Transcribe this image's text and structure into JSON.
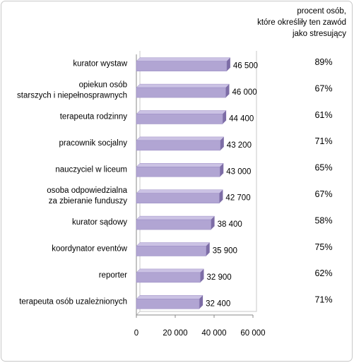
{
  "chart_data": {
    "type": "bar",
    "orientation": "horizontal",
    "categories": [
      "kurator wystaw",
      "opiekun osób\nstarszych i niepełnosprawnych",
      "terapeuta rodzinny",
      "pracownik socjalny",
      "nauczyciel w liceum",
      "osoba odpowiedzialna\nza zbieranie funduszy",
      "kurator sądowy",
      "koordynator eventów",
      "reporter",
      "terapeuta osób uzależnionych"
    ],
    "values": [
      46500,
      46000,
      44400,
      43200,
      43000,
      42700,
      38400,
      35900,
      32900,
      32400
    ],
    "value_labels": [
      "46 500",
      "46 000",
      "44 400",
      "43 200",
      "43 000",
      "42 700",
      "38 400",
      "35 900",
      "32 900",
      "32 400"
    ],
    "color": "#b1a5d3",
    "xlim": [
      0,
      60000
    ],
    "xticks": [
      0,
      {
        "value": 20000,
        "label": "20 000"
      },
      {
        "value": 40000,
        "label": "40 000"
      },
      {
        "value": 60000,
        "label": "60 000"
      }
    ],
    "percent_column": {
      "title": "procent osób,\nktóre określiły ten zawód\njako stresujący",
      "values": [
        89,
        67,
        61,
        71,
        65,
        67,
        58,
        75,
        62,
        71
      ],
      "value_labels": [
        "89%",
        "67%",
        "61%",
        "71%",
        "65%",
        "67%",
        "58%",
        "75%",
        "62%",
        "71%"
      ]
    }
  }
}
